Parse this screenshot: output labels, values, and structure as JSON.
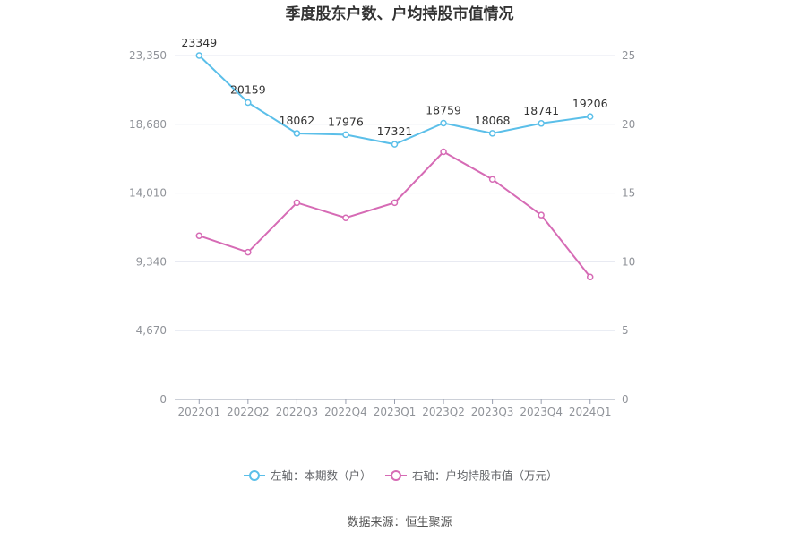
{
  "chart_data": {
    "type": "line",
    "title": "季度股东户数、户均持股市值情况",
    "categories": [
      "2022Q1",
      "2022Q2",
      "2022Q3",
      "2022Q4",
      "2023Q1",
      "2023Q2",
      "2023Q3",
      "2023Q4",
      "2024Q1"
    ],
    "series": [
      {
        "name": "左轴：本期数（户）",
        "axis": "left",
        "color": "#5bbfe9",
        "values": [
          23349,
          20159,
          18062,
          17976,
          17321,
          18759,
          18068,
          18741,
          19206
        ],
        "labels": [
          "23349",
          "20159",
          "18062",
          "17976",
          "17321",
          "18759",
          "18068",
          "18741",
          "19206"
        ]
      },
      {
        "name": "右轴：户均持股市值（万元）",
        "axis": "right",
        "color": "#d66bb5",
        "values": [
          11.9,
          10.7,
          14.3,
          13.2,
          14.3,
          18.0,
          16.0,
          13.4,
          8.9
        ]
      }
    ],
    "left_axis": {
      "min": 0,
      "max": 23350,
      "ticks": [
        "0",
        "4,670",
        "9,340",
        "14,010",
        "18,680",
        "23,350"
      ]
    },
    "right_axis": {
      "min": 0,
      "max": 25,
      "ticks": [
        "0",
        "5",
        "10",
        "15",
        "20",
        "25"
      ]
    },
    "grid": true,
    "legend_position": "bottom"
  },
  "source": "数据来源：恒生聚源"
}
